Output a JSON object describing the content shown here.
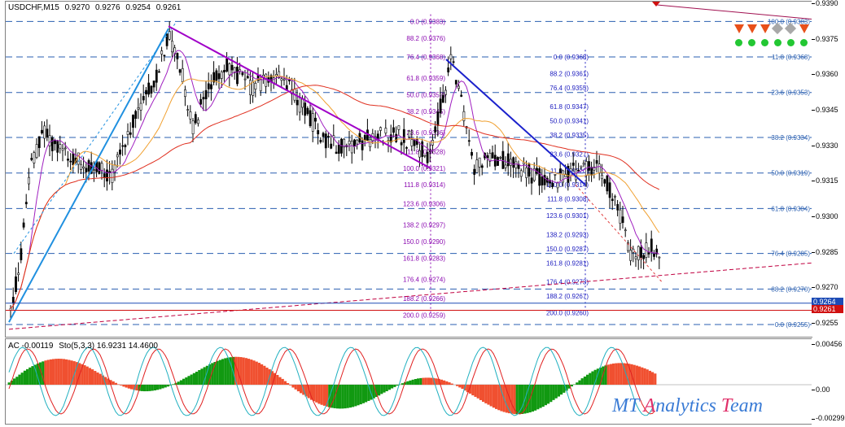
{
  "header": {
    "symbol": "USDCHF,M15",
    "open": "0.9270",
    "high": "0.9276",
    "low": "0.9254",
    "close": "0.9261"
  },
  "indicator_header": {
    "ac": "AC -0.00119",
    "stoch": "Sto(5,3,3) 16.9231 14.4600"
  },
  "price_axis": {
    "labels": [
      "0.9390",
      "0.9375",
      "0.9360",
      "0.9345",
      "0.9330",
      "0.9315",
      "0.9300",
      "0.9285",
      "0.9270",
      "0.9255"
    ],
    "current_high": "0.9264",
    "current_close": "0.9261",
    "colors": {
      "bid": "#1d4bb5",
      "close": "#d01010"
    }
  },
  "indicator_axis": {
    "top": "0.00456",
    "zero": "0.00",
    "bottom": "-0.00299"
  },
  "fib_levels_left": [
    {
      "text": "0.0 (0.9383)"
    },
    {
      "text": "88.2 (0.9376)"
    },
    {
      "text": "76.4 (0.9368)"
    },
    {
      "text": "61.8 (0.9359)"
    },
    {
      "text": "50.0 (0.9352)"
    },
    {
      "text": "38.2 (0.9345)"
    },
    {
      "text": "23.6 (0.9336)"
    },
    {
      "text": "11.8 (0.9328)"
    },
    {
      "text": "100.0 (0.9321)"
    },
    {
      "text": "111.8 (0.9314)"
    },
    {
      "text": "123.6 (0.9306)"
    },
    {
      "text": "138.2 (0.9297)"
    },
    {
      "text": "150.0 (0.9290)"
    },
    {
      "text": "161.8 (0.9283)"
    },
    {
      "text": "176.4 (0.9274)"
    },
    {
      "text": "188.2 (0.9266)"
    },
    {
      "text": "200.0 (0.9259)"
    }
  ],
  "fib_levels_mid": [
    {
      "text": "0.0 (0.9368)"
    },
    {
      "text": "88.2 (0.9361)"
    },
    {
      "text": "76.4 (0.9355)"
    },
    {
      "text": "61.8 (0.9347)"
    },
    {
      "text": "50.0 (0.9341)"
    },
    {
      "text": "38.2 (0.9335)"
    },
    {
      "text": "23.6 (0.9327)"
    },
    {
      "text": "11.8 (0.9320)"
    },
    {
      "text": "100.0 (0.9314)"
    },
    {
      "text": "111.8 (0.9308)"
    },
    {
      "text": "123.6 (0.9301)"
    },
    {
      "text": "138.2 (0.9293)"
    },
    {
      "text": "150.0 (0.9287)"
    },
    {
      "text": "161.8 (0.9281)"
    },
    {
      "text": "176.4 (0.9273)"
    },
    {
      "text": "188.2 (0.9267)"
    },
    {
      "text": "200.0 (0.9260)"
    }
  ],
  "fib_levels_right": [
    {
      "text": "100.0 (0.9383)"
    },
    {
      "text": "11.8 (0.9368)"
    },
    {
      "text": "23.6 (0.9353)"
    },
    {
      "text": "38.2 (0.9334)"
    },
    {
      "text": "50.0 (0.9319)"
    },
    {
      "text": "61.8 (0.9304)"
    },
    {
      "text": "76.4 (0.9285)"
    },
    {
      "text": "88.2 (0.9270)"
    },
    {
      "text": "0.0 (0.9255)"
    }
  ],
  "signals": {
    "arrow_color": "#e8501a",
    "gray_color": "#a8a8a8",
    "dot_color": "#23c733"
  },
  "watermark": {
    "letters": [
      {
        "ch": "M",
        "color": "#3a7bd5"
      },
      {
        "ch": "T",
        "color": "#3a7bd5"
      },
      {
        "ch": " ",
        "color": "#3a7bd5"
      },
      {
        "ch": "A",
        "color": "#e0306a"
      },
      {
        "ch": "n",
        "color": "#3a7bd5"
      },
      {
        "ch": "a",
        "color": "#3a7bd5"
      },
      {
        "ch": "l",
        "color": "#3a7bd5"
      },
      {
        "ch": "y",
        "color": "#3a7bd5"
      },
      {
        "ch": "t",
        "color": "#3a7bd5"
      },
      {
        "ch": "i",
        "color": "#3a7bd5"
      },
      {
        "ch": "c",
        "color": "#3a7bd5"
      },
      {
        "ch": "s",
        "color": "#3a7bd5"
      },
      {
        "ch": " ",
        "color": "#3a7bd5"
      },
      {
        "ch": "T",
        "color": "#e0306a"
      },
      {
        "ch": "e",
        "color": "#3a7bd5"
      },
      {
        "ch": "a",
        "color": "#3a7bd5"
      },
      {
        "ch": "m",
        "color": "#3a7bd5"
      }
    ]
  },
  "colors": {
    "fib_left": "#8b0ab0",
    "fib_mid": "#2020c0",
    "fib_right": "#2a5fb0",
    "trend_purple": "#a000c8",
    "trend_blue": "#1b21cc",
    "trend_lightblue": "#2090e0",
    "ma_red": "#e03020",
    "ma_orange": "#f0a030",
    "ma_purple": "#a020c0",
    "ma_teal": "#20a0b0",
    "ac_green": "#119911",
    "ac_red": "#f05030",
    "stoch_main": "#20b0c0",
    "stoch_signal": "#e02020"
  }
}
